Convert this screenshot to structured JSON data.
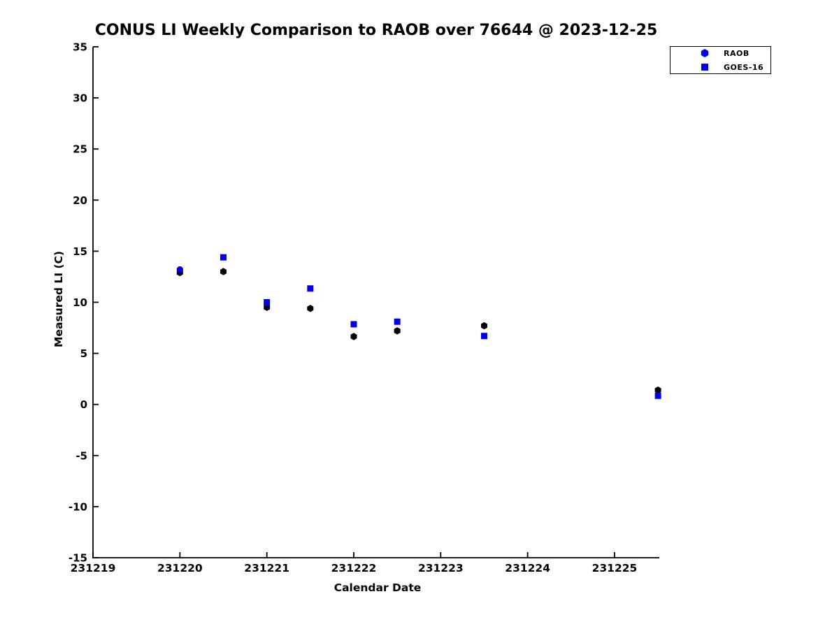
{
  "page": {
    "background": "#ffffff"
  },
  "chart_data": {
    "type": "scatter",
    "title": "CONUS LI Weekly Comparison to RAOB over 76644 @ 2023-12-25",
    "xlabel": "Calendar Date",
    "ylabel": "Measured LI (C)",
    "grid": false,
    "x_axis": {
      "min": 231219,
      "max": 231225.515,
      "ticks": [
        231219,
        231220,
        231221,
        231222,
        231223,
        231224,
        231225
      ]
    },
    "y_axis": {
      "min": -15,
      "max": 35,
      "ticks": [
        -15,
        -10,
        -5,
        0,
        5,
        10,
        15,
        20,
        25,
        30,
        35
      ]
    },
    "legend": {
      "position": "top-right-outside",
      "entries": [
        {
          "label": "RAOB",
          "marker": "hexagram-circle",
          "color": "#0000ee"
        },
        {
          "label": "GOES-16",
          "marker": "square",
          "color": "#0000ee"
        }
      ]
    },
    "series": [
      {
        "name": "unlabeled-black-hexagon",
        "marker": "hexagon",
        "color": "#000000",
        "points": [
          [
            231220.0,
            12.9
          ],
          [
            231220.5,
            13.0
          ],
          [
            231221.0,
            9.5
          ],
          [
            231221.5,
            9.4
          ],
          [
            231222.0,
            6.65
          ],
          [
            231222.5,
            7.2
          ],
          [
            231223.5,
            7.7
          ],
          [
            231225.5,
            1.4
          ]
        ]
      },
      {
        "name": "GOES-16",
        "marker": "square",
        "color": "#0000ee",
        "points": [
          [
            231220.5,
            14.4
          ],
          [
            231221.0,
            10.0
          ],
          [
            231221.5,
            11.35
          ],
          [
            231222.0,
            7.85
          ],
          [
            231222.5,
            8.1
          ],
          [
            231223.5,
            6.7
          ],
          [
            231225.5,
            0.85
          ]
        ]
      },
      {
        "name": "RAOB",
        "marker": "circle",
        "color": "#0000ee",
        "points": [
          [
            231220.0,
            13.2
          ]
        ]
      }
    ]
  }
}
